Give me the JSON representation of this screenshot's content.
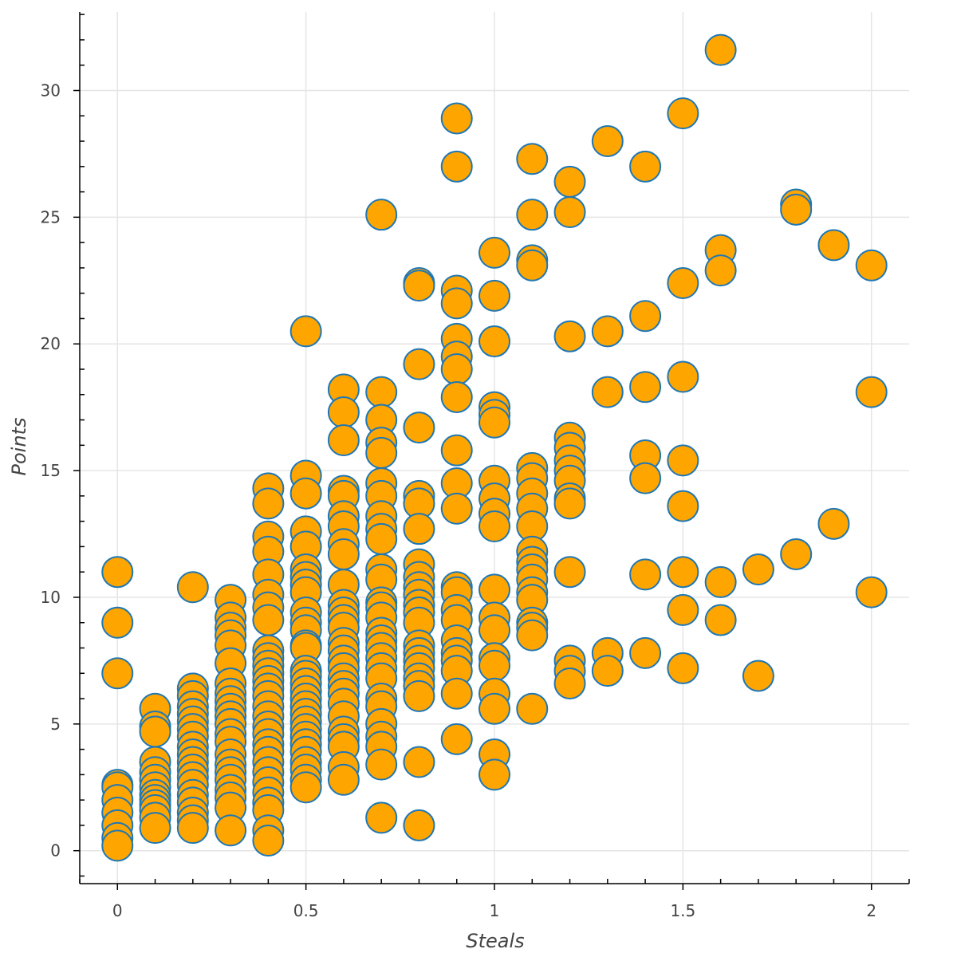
{
  "chart_data": {
    "type": "scatter",
    "xlabel": "Steals",
    "ylabel": "Points",
    "xlim": [
      -0.1,
      2.1
    ],
    "ylim": [
      -1.3,
      33.1
    ],
    "x_ticks": [
      0,
      0.5,
      1,
      1.5,
      2
    ],
    "x_tick_labels": [
      "0",
      "0.5",
      "1",
      "1.5",
      "2"
    ],
    "y_ticks": [
      0,
      5,
      10,
      15,
      20,
      25,
      30
    ],
    "y_tick_labels": [
      "0",
      "5",
      "10",
      "15",
      "20",
      "25",
      "30"
    ],
    "grid": true,
    "marker_fill": "#ffa500",
    "marker_edge": "#1f77b4",
    "series": [
      {
        "points": [
          [
            0,
            11.0
          ],
          [
            0,
            9.0
          ],
          [
            0,
            7.0
          ],
          [
            0,
            2.6
          ],
          [
            0,
            2.5
          ],
          [
            0,
            2.0
          ],
          [
            0,
            1.5
          ],
          [
            0,
            1.0
          ],
          [
            0,
            0.5
          ],
          [
            0,
            0.2
          ],
          [
            0.1,
            5.6
          ],
          [
            0.1,
            4.9
          ],
          [
            0.1,
            4.7
          ],
          [
            0.1,
            3.5
          ],
          [
            0.1,
            3.1
          ],
          [
            0.1,
            2.8
          ],
          [
            0.1,
            2.5
          ],
          [
            0.1,
            2.2
          ],
          [
            0.1,
            2.0
          ],
          [
            0.1,
            1.8
          ],
          [
            0.1,
            1.6
          ],
          [
            0.1,
            1.3
          ],
          [
            0.1,
            0.9
          ],
          [
            0.2,
            10.4
          ],
          [
            0.2,
            6.4
          ],
          [
            0.2,
            6.1
          ],
          [
            0.2,
            5.7
          ],
          [
            0.2,
            5.4
          ],
          [
            0.2,
            5.1
          ],
          [
            0.2,
            4.8
          ],
          [
            0.2,
            4.5
          ],
          [
            0.2,
            4.1
          ],
          [
            0.2,
            3.8
          ],
          [
            0.2,
            3.5
          ],
          [
            0.2,
            3.2
          ],
          [
            0.2,
            2.9
          ],
          [
            0.2,
            2.6
          ],
          [
            0.2,
            2.2
          ],
          [
            0.2,
            1.9
          ],
          [
            0.2,
            1.5
          ],
          [
            0.2,
            1.2
          ],
          [
            0.2,
            0.9
          ],
          [
            0.3,
            9.9
          ],
          [
            0.3,
            9.2
          ],
          [
            0.3,
            8.8
          ],
          [
            0.3,
            8.5
          ],
          [
            0.3,
            8.1
          ],
          [
            0.3,
            7.4
          ],
          [
            0.3,
            6.6
          ],
          [
            0.3,
            6.2
          ],
          [
            0.3,
            5.9
          ],
          [
            0.3,
            5.6
          ],
          [
            0.3,
            5.3
          ],
          [
            0.3,
            5.0
          ],
          [
            0.3,
            4.6
          ],
          [
            0.3,
            4.3
          ],
          [
            0.3,
            3.8
          ],
          [
            0.3,
            3.4
          ],
          [
            0.3,
            3.1
          ],
          [
            0.3,
            2.8
          ],
          [
            0.3,
            2.4
          ],
          [
            0.3,
            2.1
          ],
          [
            0.3,
            1.7
          ],
          [
            0.3,
            0.8
          ],
          [
            0.4,
            14.3
          ],
          [
            0.4,
            13.7
          ],
          [
            0.4,
            12.4
          ],
          [
            0.4,
            11.8
          ],
          [
            0.4,
            10.9
          ],
          [
            0.4,
            10.1
          ],
          [
            0.4,
            9.6
          ],
          [
            0.4,
            9.1
          ],
          [
            0.4,
            7.9
          ],
          [
            0.4,
            7.6
          ],
          [
            0.4,
            7.3
          ],
          [
            0.4,
            7.0
          ],
          [
            0.4,
            6.7
          ],
          [
            0.4,
            6.4
          ],
          [
            0.4,
            6.1
          ],
          [
            0.4,
            5.7
          ],
          [
            0.4,
            5.3
          ],
          [
            0.4,
            4.9
          ],
          [
            0.4,
            4.6
          ],
          [
            0.4,
            4.2
          ],
          [
            0.4,
            3.9
          ],
          [
            0.4,
            3.5
          ],
          [
            0.4,
            3.1
          ],
          [
            0.4,
            2.7
          ],
          [
            0.4,
            2.3
          ],
          [
            0.4,
            1.9
          ],
          [
            0.4,
            1.6
          ],
          [
            0.4,
            0.8
          ],
          [
            0.4,
            0.4
          ],
          [
            0.5,
            20.5
          ],
          [
            0.5,
            14.8
          ],
          [
            0.5,
            14.1
          ],
          [
            0.5,
            12.6
          ],
          [
            0.5,
            12.0
          ],
          [
            0.5,
            11.1
          ],
          [
            0.5,
            10.8
          ],
          [
            0.5,
            10.5
          ],
          [
            0.5,
            10.2
          ],
          [
            0.5,
            9.4
          ],
          [
            0.5,
            9.0
          ],
          [
            0.5,
            8.7
          ],
          [
            0.5,
            8.1
          ],
          [
            0.5,
            8.0
          ],
          [
            0.5,
            7.1
          ],
          [
            0.5,
            6.9
          ],
          [
            0.5,
            6.6
          ],
          [
            0.5,
            6.3
          ],
          [
            0.5,
            6.0
          ],
          [
            0.5,
            5.7
          ],
          [
            0.5,
            5.4
          ],
          [
            0.5,
            5.1
          ],
          [
            0.5,
            4.8
          ],
          [
            0.5,
            4.5
          ],
          [
            0.5,
            4.2
          ],
          [
            0.5,
            3.9
          ],
          [
            0.5,
            3.5
          ],
          [
            0.5,
            3.2
          ],
          [
            0.5,
            2.8
          ],
          [
            0.5,
            2.5
          ],
          [
            0.6,
            18.2
          ],
          [
            0.6,
            17.3
          ],
          [
            0.6,
            16.2
          ],
          [
            0.6,
            14.2
          ],
          [
            0.6,
            14.0
          ],
          [
            0.6,
            13.2
          ],
          [
            0.6,
            12.8
          ],
          [
            0.6,
            12.1
          ],
          [
            0.6,
            11.7
          ],
          [
            0.6,
            10.5
          ],
          [
            0.6,
            9.7
          ],
          [
            0.6,
            9.4
          ],
          [
            0.6,
            9.1
          ],
          [
            0.6,
            8.8
          ],
          [
            0.6,
            8.2
          ],
          [
            0.6,
            7.9
          ],
          [
            0.6,
            7.5
          ],
          [
            0.6,
            7.2
          ],
          [
            0.6,
            6.8
          ],
          [
            0.6,
            6.5
          ],
          [
            0.6,
            6.2
          ],
          [
            0.6,
            5.8
          ],
          [
            0.6,
            5.3
          ],
          [
            0.6,
            4.7
          ],
          [
            0.6,
            4.4
          ],
          [
            0.6,
            4.1
          ],
          [
            0.6,
            3.3
          ],
          [
            0.6,
            2.8
          ],
          [
            0.7,
            25.1
          ],
          [
            0.7,
            18.1
          ],
          [
            0.7,
            17.0
          ],
          [
            0.7,
            16.1
          ],
          [
            0.7,
            15.7
          ],
          [
            0.7,
            14.5
          ],
          [
            0.7,
            14.0
          ],
          [
            0.7,
            13.2
          ],
          [
            0.7,
            12.7
          ],
          [
            0.7,
            12.3
          ],
          [
            0.7,
            11.1
          ],
          [
            0.7,
            10.7
          ],
          [
            0.7,
            9.8
          ],
          [
            0.7,
            9.6
          ],
          [
            0.7,
            9.2
          ],
          [
            0.7,
            8.6
          ],
          [
            0.7,
            8.3
          ],
          [
            0.7,
            8.0
          ],
          [
            0.7,
            7.6
          ],
          [
            0.7,
            7.2
          ],
          [
            0.7,
            6.8
          ],
          [
            0.7,
            6.0
          ],
          [
            0.7,
            5.7
          ],
          [
            0.7,
            5.0
          ],
          [
            0.7,
            4.5
          ],
          [
            0.7,
            4.1
          ],
          [
            0.7,
            3.4
          ],
          [
            0.7,
            1.3
          ],
          [
            0.8,
            22.4
          ],
          [
            0.8,
            22.3
          ],
          [
            0.8,
            19.2
          ],
          [
            0.8,
            16.7
          ],
          [
            0.8,
            14.0
          ],
          [
            0.8,
            13.7
          ],
          [
            0.8,
            12.7
          ],
          [
            0.8,
            11.3
          ],
          [
            0.8,
            10.8
          ],
          [
            0.8,
            10.4
          ],
          [
            0.8,
            10.1
          ],
          [
            0.8,
            9.7
          ],
          [
            0.8,
            9.4
          ],
          [
            0.8,
            9.0
          ],
          [
            0.8,
            8.1
          ],
          [
            0.8,
            7.8
          ],
          [
            0.8,
            7.5
          ],
          [
            0.8,
            7.2
          ],
          [
            0.8,
            6.8
          ],
          [
            0.8,
            6.5
          ],
          [
            0.8,
            6.1
          ],
          [
            0.8,
            3.5
          ],
          [
            0.8,
            1.0
          ],
          [
            0.9,
            28.9
          ],
          [
            0.9,
            27.0
          ],
          [
            0.9,
            22.1
          ],
          [
            0.9,
            21.6
          ],
          [
            0.9,
            20.2
          ],
          [
            0.9,
            19.5
          ],
          [
            0.9,
            19.0
          ],
          [
            0.9,
            17.9
          ],
          [
            0.9,
            15.8
          ],
          [
            0.9,
            14.5
          ],
          [
            0.9,
            13.5
          ],
          [
            0.9,
            10.4
          ],
          [
            0.9,
            10.2
          ],
          [
            0.9,
            9.5
          ],
          [
            0.9,
            9.1
          ],
          [
            0.9,
            8.3
          ],
          [
            0.9,
            7.8
          ],
          [
            0.9,
            7.5
          ],
          [
            0.9,
            7.1
          ],
          [
            0.9,
            6.2
          ],
          [
            0.9,
            4.4
          ],
          [
            1,
            23.6
          ],
          [
            1,
            21.9
          ],
          [
            1,
            20.1
          ],
          [
            1,
            17.5
          ],
          [
            1,
            17.2
          ],
          [
            1,
            16.9
          ],
          [
            1,
            14.6
          ],
          [
            1,
            13.9
          ],
          [
            1,
            13.3
          ],
          [
            1,
            12.8
          ],
          [
            1,
            10.3
          ],
          [
            1,
            9.2
          ],
          [
            1,
            8.7
          ],
          [
            1,
            7.6
          ],
          [
            1,
            7.3
          ],
          [
            1,
            6.2
          ],
          [
            1,
            5.6
          ],
          [
            1,
            3.8
          ],
          [
            1,
            3.0
          ],
          [
            1.1,
            27.3
          ],
          [
            1.1,
            25.1
          ],
          [
            1.1,
            23.3
          ],
          [
            1.1,
            23.1
          ],
          [
            1.1,
            15.1
          ],
          [
            1.1,
            14.7
          ],
          [
            1.1,
            14.1
          ],
          [
            1.1,
            13.5
          ],
          [
            1.1,
            12.8
          ],
          [
            1.1,
            11.8
          ],
          [
            1.1,
            11.4
          ],
          [
            1.1,
            11.1
          ],
          [
            1.1,
            10.7
          ],
          [
            1.1,
            10.2
          ],
          [
            1.1,
            9.9
          ],
          [
            1.1,
            9.0
          ],
          [
            1.1,
            8.8
          ],
          [
            1.1,
            8.5
          ],
          [
            1.1,
            5.6
          ],
          [
            1.2,
            26.4
          ],
          [
            1.2,
            25.2
          ],
          [
            1.2,
            20.3
          ],
          [
            1.2,
            16.3
          ],
          [
            1.2,
            15.9
          ],
          [
            1.2,
            15.4
          ],
          [
            1.2,
            15.0
          ],
          [
            1.2,
            14.6
          ],
          [
            1.2,
            13.9
          ],
          [
            1.2,
            13.7
          ],
          [
            1.2,
            11.0
          ],
          [
            1.2,
            7.5
          ],
          [
            1.2,
            7.1
          ],
          [
            1.2,
            6.6
          ],
          [
            1.3,
            28.0
          ],
          [
            1.3,
            20.5
          ],
          [
            1.3,
            18.1
          ],
          [
            1.3,
            7.8
          ],
          [
            1.3,
            7.1
          ],
          [
            1.4,
            27.0
          ],
          [
            1.4,
            21.1
          ],
          [
            1.4,
            18.3
          ],
          [
            1.4,
            15.6
          ],
          [
            1.4,
            14.7
          ],
          [
            1.4,
            10.9
          ],
          [
            1.4,
            7.8
          ],
          [
            1.5,
            29.1
          ],
          [
            1.5,
            22.4
          ],
          [
            1.5,
            18.7
          ],
          [
            1.5,
            15.4
          ],
          [
            1.5,
            13.6
          ],
          [
            1.5,
            11.0
          ],
          [
            1.5,
            9.5
          ],
          [
            1.5,
            7.2
          ],
          [
            1.6,
            31.6
          ],
          [
            1.6,
            23.7
          ],
          [
            1.6,
            22.9
          ],
          [
            1.6,
            10.6
          ],
          [
            1.6,
            9.1
          ],
          [
            1.7,
            11.1
          ],
          [
            1.7,
            6.9
          ],
          [
            1.8,
            25.5
          ],
          [
            1.8,
            25.3
          ],
          [
            1.8,
            11.7
          ],
          [
            1.9,
            23.9
          ],
          [
            1.9,
            12.9
          ],
          [
            2,
            23.1
          ],
          [
            2,
            18.1
          ],
          [
            2,
            10.2
          ]
        ]
      }
    ]
  }
}
